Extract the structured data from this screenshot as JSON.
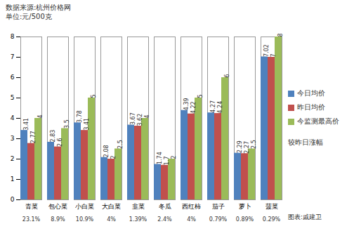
{
  "chart_data": {
    "type": "bar",
    "title": "数据来源:杭州价格网",
    "subtitle": "单位:元/500克",
    "categories": [
      "青菜",
      "包心菜",
      "小白菜",
      "大白菜",
      "韭菜",
      "冬瓜",
      "西红柿",
      "茄子",
      "萝卜",
      "菠菜"
    ],
    "series": [
      {
        "name": "今日均价",
        "color": "#4f81bd",
        "values": [
          3.41,
          2.83,
          3.78,
          2.08,
          3.67,
          1.74,
          4.39,
          4.27,
          2.29,
          7.02
        ]
      },
      {
        "name": "昨日均价",
        "color": "#c0504d",
        "values": [
          2.77,
          2.6,
          3.41,
          2,
          3.62,
          1.7,
          4.22,
          4.24,
          2.27,
          7
        ]
      },
      {
        "name": "今监测最高价",
        "color": "#9bbb59",
        "values": [
          4,
          3.5,
          5,
          2.5,
          4,
          2,
          5,
          6,
          2.5,
          8
        ]
      }
    ],
    "change": {
      "label": "较昨日涨幅",
      "values": [
        23.1,
        8.9,
        10.9,
        4,
        1.39,
        2.4,
        4,
        0.79,
        0.89,
        0.29
      ],
      "value_labels": [
        "23.1%",
        "8.9%",
        "10.9%",
        "4%",
        "1.39%",
        "2.4%",
        "4%",
        "0.79%",
        "0.89%",
        "0.29%"
      ]
    },
    "credit": "图表:戚建卫",
    "ylim": [
      0,
      8
    ],
    "yticks": [
      0,
      1,
      2,
      3,
      4,
      5,
      6,
      7,
      8
    ],
    "grid": false,
    "legend": "right",
    "data_labels": true
  }
}
